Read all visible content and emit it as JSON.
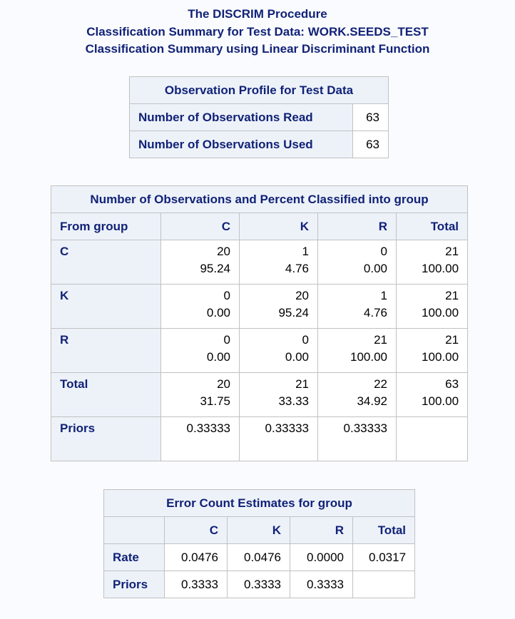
{
  "titles": [
    "The DISCRIM Procedure",
    "Classification Summary for Test Data: WORK.SEEDS_TEST",
    "Classification Summary using Linear Discriminant Function"
  ],
  "profile": {
    "caption": "Observation Profile for Test Data",
    "rows": [
      {
        "label": "Number of Observations Read",
        "value": "63"
      },
      {
        "label": "Number of Observations Used",
        "value": "63"
      }
    ]
  },
  "classif": {
    "caption": "Number of Observations and Percent Classified into group",
    "from_label": "From group",
    "columns": [
      "C",
      "K",
      "R",
      "Total"
    ],
    "rows": [
      {
        "label": "C",
        "cells": [
          [
            "20",
            "95.24"
          ],
          [
            "1",
            "4.76"
          ],
          [
            "0",
            "0.00"
          ],
          [
            "21",
            "100.00"
          ]
        ]
      },
      {
        "label": "K",
        "cells": [
          [
            "0",
            "0.00"
          ],
          [
            "20",
            "95.24"
          ],
          [
            "1",
            "4.76"
          ],
          [
            "21",
            "100.00"
          ]
        ]
      },
      {
        "label": "R",
        "cells": [
          [
            "0",
            "0.00"
          ],
          [
            "0",
            "0.00"
          ],
          [
            "21",
            "100.00"
          ],
          [
            "21",
            "100.00"
          ]
        ]
      },
      {
        "label": "Total",
        "cells": [
          [
            "20",
            "31.75"
          ],
          [
            "21",
            "33.33"
          ],
          [
            "22",
            "34.92"
          ],
          [
            "63",
            "100.00"
          ]
        ]
      }
    ],
    "priors_label": "Priors",
    "priors": [
      "0.33333",
      "0.33333",
      "0.33333",
      ""
    ]
  },
  "errors": {
    "caption": "Error Count Estimates for group",
    "columns": [
      "C",
      "K",
      "R",
      "Total"
    ],
    "rows": [
      {
        "label": "Rate",
        "values": [
          "0.0476",
          "0.0476",
          "0.0000",
          "0.0317"
        ]
      },
      {
        "label": "Priors",
        "values": [
          "0.3333",
          "0.3333",
          "0.3333",
          ""
        ]
      }
    ]
  }
}
